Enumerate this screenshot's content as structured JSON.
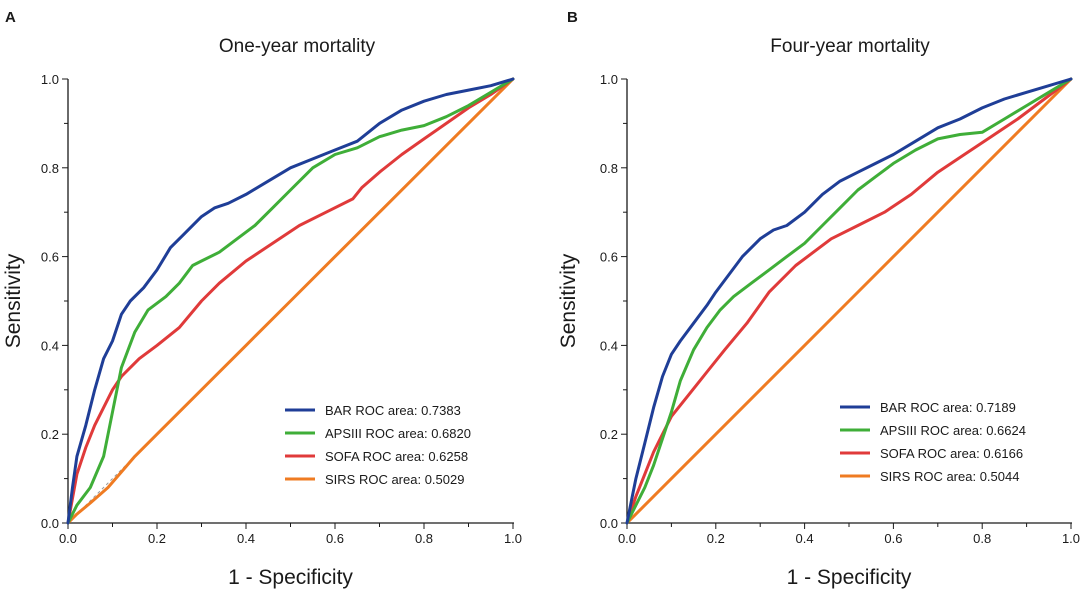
{
  "chart_data": [
    {
      "type": "line",
      "panel": "A",
      "title": "One-year mortality",
      "xlabel": "1 - Specificity",
      "ylabel": "Sensitivity",
      "xlim": [
        0,
        1
      ],
      "ylim": [
        0,
        1
      ],
      "xticks": [
        "0.0",
        "0.2",
        "0.4",
        "0.6",
        "0.8",
        "1.0"
      ],
      "yticks": [
        "0.0",
        "0.2",
        "0.4",
        "0.6",
        "0.8",
        "1.0"
      ],
      "legend_position": "bottom-right",
      "series": [
        {
          "name": "BAR ROC area: 0.7383",
          "color": "#1f3e97",
          "x": [
            0,
            0.01,
            0.02,
            0.04,
            0.06,
            0.08,
            0.1,
            0.12,
            0.14,
            0.17,
            0.2,
            0.23,
            0.26,
            0.3,
            0.33,
            0.36,
            0.4,
            0.45,
            0.5,
            0.55,
            0.6,
            0.65,
            0.7,
            0.75,
            0.8,
            0.85,
            0.9,
            0.95,
            1.0
          ],
          "y": [
            0,
            0.08,
            0.15,
            0.22,
            0.3,
            0.37,
            0.41,
            0.47,
            0.5,
            0.53,
            0.57,
            0.62,
            0.65,
            0.69,
            0.71,
            0.72,
            0.74,
            0.77,
            0.8,
            0.82,
            0.84,
            0.86,
            0.9,
            0.93,
            0.95,
            0.965,
            0.975,
            0.985,
            1.0
          ]
        },
        {
          "name": "APSIII ROC area: 0.6820",
          "color": "#3fae38",
          "x": [
            0,
            0.02,
            0.05,
            0.08,
            0.1,
            0.12,
            0.15,
            0.18,
            0.22,
            0.25,
            0.28,
            0.3,
            0.34,
            0.38,
            0.42,
            0.46,
            0.5,
            0.55,
            0.6,
            0.65,
            0.7,
            0.75,
            0.8,
            0.85,
            0.9,
            0.95,
            1.0
          ],
          "y": [
            0,
            0.04,
            0.08,
            0.15,
            0.25,
            0.35,
            0.43,
            0.48,
            0.51,
            0.54,
            0.58,
            0.59,
            0.61,
            0.64,
            0.67,
            0.71,
            0.75,
            0.8,
            0.83,
            0.845,
            0.87,
            0.885,
            0.895,
            0.915,
            0.94,
            0.97,
            1.0
          ]
        },
        {
          "name": "SOFA ROC area: 0.6258",
          "color": "#e03a3a",
          "x": [
            0,
            0.02,
            0.04,
            0.06,
            0.08,
            0.1,
            0.12,
            0.16,
            0.2,
            0.25,
            0.3,
            0.34,
            0.4,
            0.46,
            0.52,
            0.58,
            0.64,
            0.66,
            0.7,
            0.75,
            0.8,
            0.85,
            0.9,
            0.95,
            1.0
          ],
          "y": [
            0,
            0.11,
            0.17,
            0.22,
            0.26,
            0.3,
            0.33,
            0.37,
            0.4,
            0.44,
            0.5,
            0.54,
            0.59,
            0.63,
            0.67,
            0.7,
            0.73,
            0.755,
            0.79,
            0.83,
            0.865,
            0.9,
            0.935,
            0.965,
            1.0
          ]
        },
        {
          "name": "SIRS ROC area: 0.5029",
          "color": "#ef7b22",
          "x": [
            0,
            0.02,
            0.05,
            0.09,
            0.15,
            0.2,
            0.3,
            0.4,
            0.5,
            0.6,
            0.7,
            0.8,
            0.9,
            1.0
          ],
          "y": [
            0,
            0.02,
            0.045,
            0.08,
            0.15,
            0.2,
            0.3,
            0.4,
            0.5,
            0.6,
            0.7,
            0.8,
            0.9,
            1.0
          ]
        }
      ]
    },
    {
      "type": "line",
      "panel": "B",
      "title": "Four-year mortality",
      "xlabel": "1 - Specificity",
      "ylabel": "Sensitivity",
      "xlim": [
        0,
        1
      ],
      "ylim": [
        0,
        1
      ],
      "xticks": [
        "0.0",
        "0.2",
        "0.4",
        "0.6",
        "0.8",
        "1.0"
      ],
      "yticks": [
        "0.0",
        "0.2",
        "0.4",
        "0.6",
        "0.8",
        "1.0"
      ],
      "legend_position": "bottom-right",
      "series": [
        {
          "name": "BAR ROC area: 0.7189",
          "color": "#1f3e97",
          "x": [
            0,
            0.01,
            0.02,
            0.04,
            0.06,
            0.08,
            0.1,
            0.12,
            0.15,
            0.18,
            0.2,
            0.23,
            0.26,
            0.3,
            0.33,
            0.36,
            0.4,
            0.44,
            0.48,
            0.52,
            0.56,
            0.6,
            0.65,
            0.7,
            0.75,
            0.8,
            0.85,
            0.9,
            0.95,
            1.0
          ],
          "y": [
            0,
            0.05,
            0.1,
            0.18,
            0.26,
            0.33,
            0.38,
            0.41,
            0.45,
            0.49,
            0.52,
            0.56,
            0.6,
            0.64,
            0.66,
            0.67,
            0.7,
            0.74,
            0.77,
            0.79,
            0.81,
            0.83,
            0.86,
            0.89,
            0.91,
            0.935,
            0.955,
            0.97,
            0.985,
            1.0
          ]
        },
        {
          "name": "APSIII ROC area: 0.6624",
          "color": "#3fae38",
          "x": [
            0,
            0.02,
            0.04,
            0.06,
            0.08,
            0.1,
            0.12,
            0.15,
            0.18,
            0.21,
            0.24,
            0.28,
            0.32,
            0.36,
            0.4,
            0.44,
            0.48,
            0.52,
            0.56,
            0.6,
            0.65,
            0.7,
            0.75,
            0.8,
            0.85,
            0.9,
            0.95,
            1.0
          ],
          "y": [
            0,
            0.04,
            0.08,
            0.13,
            0.19,
            0.25,
            0.32,
            0.39,
            0.44,
            0.48,
            0.51,
            0.54,
            0.57,
            0.6,
            0.63,
            0.67,
            0.71,
            0.75,
            0.78,
            0.81,
            0.84,
            0.865,
            0.875,
            0.88,
            0.91,
            0.94,
            0.97,
            1.0
          ]
        },
        {
          "name": "SOFA ROC area: 0.6166",
          "color": "#e03a3a",
          "x": [
            0,
            0.02,
            0.04,
            0.06,
            0.08,
            0.1,
            0.14,
            0.18,
            0.22,
            0.27,
            0.32,
            0.38,
            0.46,
            0.52,
            0.58,
            0.64,
            0.7,
            0.76,
            0.82,
            0.88,
            0.94,
            1.0
          ],
          "y": [
            0,
            0.06,
            0.11,
            0.16,
            0.2,
            0.24,
            0.29,
            0.34,
            0.39,
            0.45,
            0.52,
            0.58,
            0.64,
            0.67,
            0.7,
            0.74,
            0.79,
            0.83,
            0.87,
            0.91,
            0.955,
            1.0
          ]
        },
        {
          "name": "SIRS ROC area: 0.5044",
          "color": "#ef7b22",
          "x": [
            0,
            0.1,
            0.2,
            0.3,
            0.4,
            0.5,
            0.6,
            0.7,
            0.8,
            0.9,
            1.0
          ],
          "y": [
            0,
            0.1,
            0.2,
            0.3,
            0.4,
            0.5,
            0.6,
            0.7,
            0.8,
            0.9,
            1.0
          ]
        }
      ]
    }
  ]
}
